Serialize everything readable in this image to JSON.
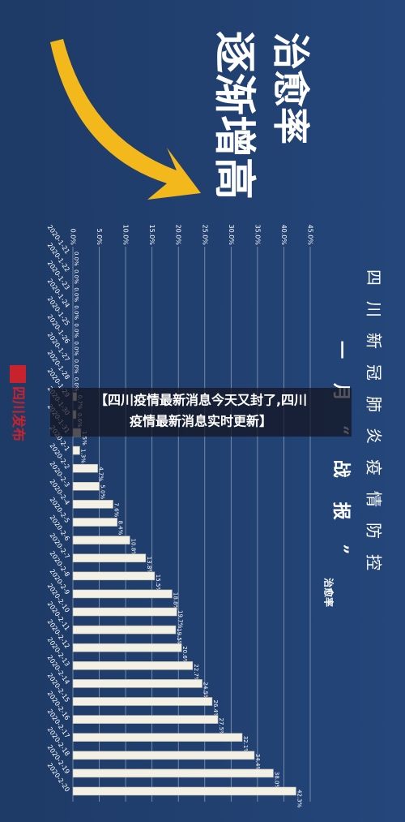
{
  "chart_data": {
    "type": "bar",
    "orientation": "horizontal",
    "title": "四川新冠肺炎疫情防控",
    "subtitle": "一月“战报”",
    "annotation": [
      "治愈率",
      "逐渐增高"
    ],
    "categories": [
      "2020-1-21",
      "2020-1-22",
      "2020-1-23",
      "2020-1-24",
      "2020-1-25",
      "2020-1-26",
      "2020-1-27",
      "2020-1-28",
      "2020-1-29",
      "2020-1-30",
      "2020-1-31",
      "2020-2-1",
      "2020-2-2",
      "2020-2-3",
      "2020-2-4",
      "2020-2-5",
      "2020-2-6",
      "2020-2-7",
      "2020-2-8",
      "2020-2-9",
      "2020-2-10",
      "2020-2-11",
      "2020-2-12",
      "2020-2-13",
      "2020-2-14",
      "2020-2-15",
      "2020-2-16",
      "2020-2-17",
      "2020-2-18",
      "2020-2-19",
      "2020-2-20"
    ],
    "series": [
      {
        "name": "治愈率",
        "color": "#f3f0e6",
        "values": [
          0,
          0,
          0,
          0,
          0,
          0,
          0,
          0,
          0.7,
          0.6,
          1.5,
          1.3,
          4.7,
          5.0,
          7.6,
          8.4,
          10.8,
          13.8,
          15.5,
          18.8,
          19.7,
          19.5,
          20.6,
          22.7,
          24.5,
          26.4,
          27.5,
          32.1,
          34.4,
          38.0,
          42.3
        ],
        "value_labels": [
          "0.0%",
          "0.0%",
          "0.0%",
          "0.0%",
          "0.0%",
          "0.0%",
          "0.0%",
          "0.0%",
          "0.7%",
          "0.6%",
          "1.5%",
          "1.3%",
          "4.7%",
          "5.0%",
          "7.6%",
          "8.4%",
          "10.8%",
          "13.8%",
          "15.5%",
          "18.8%",
          "19.7%",
          "19.5%",
          "20.6%",
          "22.7%",
          "24.5%",
          "26.4%",
          "27.5%",
          "32.1%",
          "34.4%",
          "38.0%",
          "42.3%"
        ]
      }
    ],
    "xlim": [
      0,
      45
    ],
    "xticks": [
      {
        "value": 0,
        "label": "0.0%"
      },
      {
        "value": 5,
        "label": "5.0%"
      },
      {
        "value": 10,
        "label": "10.0%"
      },
      {
        "value": 15,
        "label": "15.0%"
      },
      {
        "value": 20,
        "label": "20.0%"
      },
      {
        "value": 25,
        "label": "25.0%"
      },
      {
        "value": 30,
        "label": "30.0%"
      },
      {
        "value": 35,
        "label": "35.0%"
      },
      {
        "value": 40,
        "label": "40.0%"
      },
      {
        "value": 45,
        "label": "45.0%"
      }
    ],
    "grid": true
  },
  "logo": "四川发布",
  "caption": [
    "【四川疫情最新消息今天又封了,四川",
    "疫情最新消息实时更新】"
  ]
}
